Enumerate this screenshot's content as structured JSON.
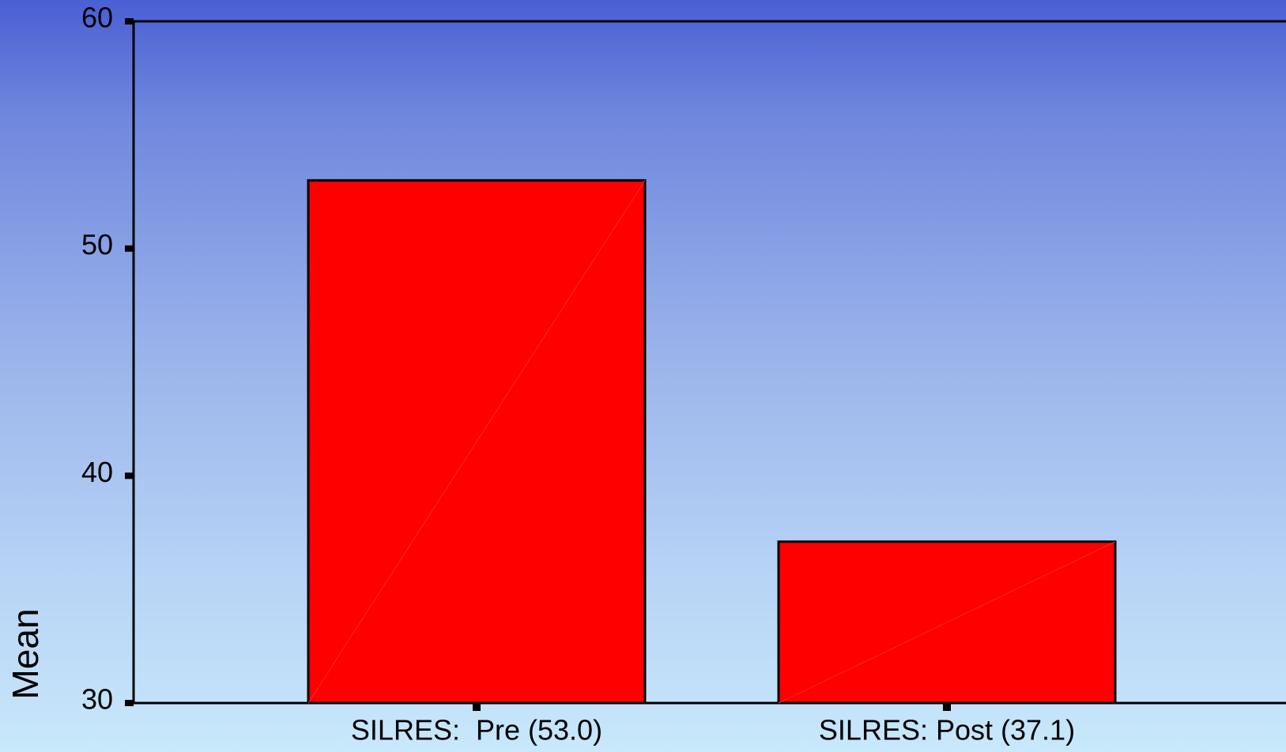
{
  "chart_data": {
    "type": "bar",
    "categories": [
      "SILRES:  Pre (53.0)",
      "SILRES: Post (37.1)"
    ],
    "values": [
      53.0,
      37.1
    ],
    "color": "#ff0000",
    "ylim": [
      30,
      60
    ],
    "yticks": [
      30,
      40,
      50,
      60
    ],
    "ylabel": "Mean",
    "grid": false
  }
}
